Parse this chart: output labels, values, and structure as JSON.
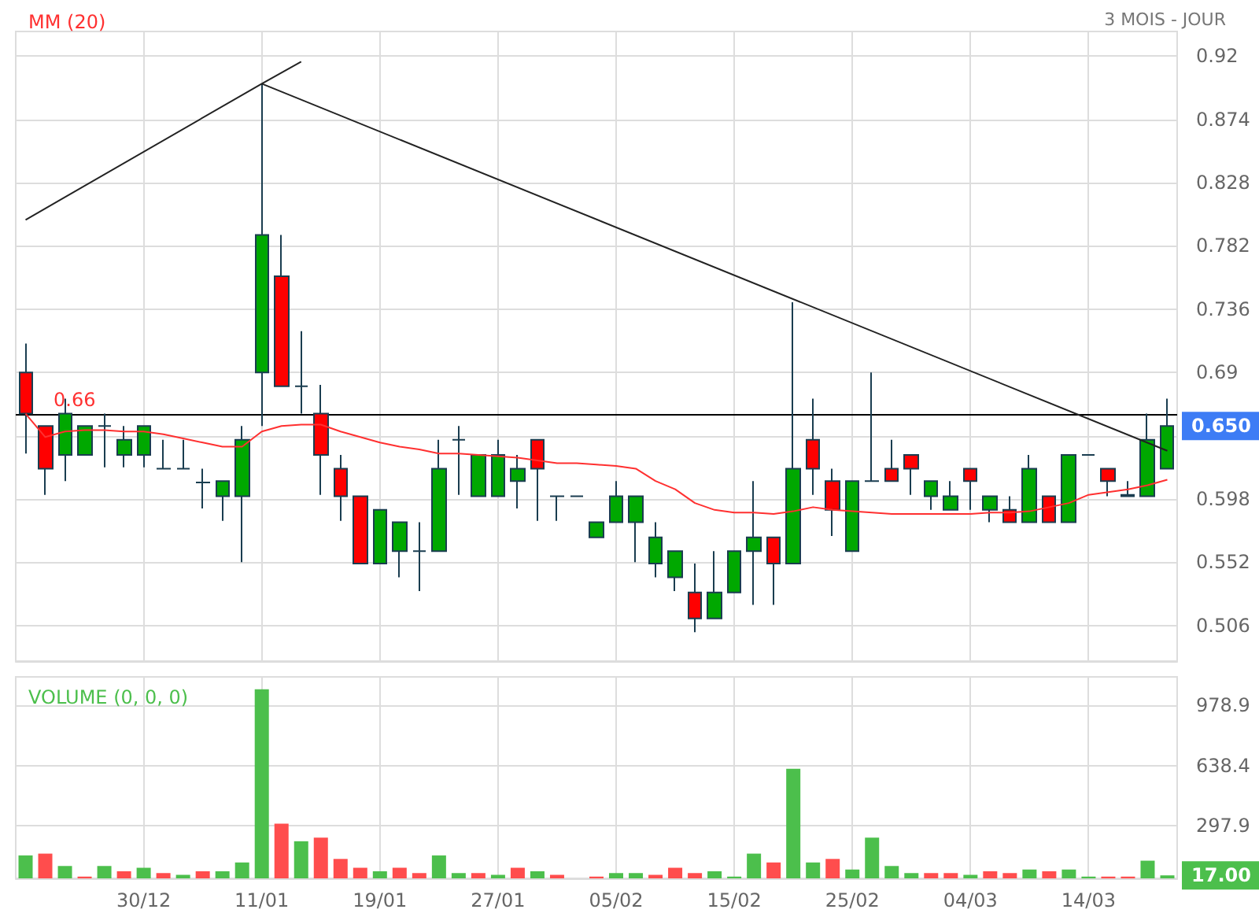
{
  "chart_data": [
    {
      "type": "candlestick",
      "subtitle": "3 MOIS - JOUR",
      "categories": [
        null,
        null,
        null,
        null,
        null,
        null,
        null,
        null,
        null,
        null,
        null,
        null,
        null,
        null,
        null,
        null,
        null,
        null,
        null,
        null,
        null,
        null,
        null,
        null,
        null,
        null,
        null,
        null,
        null,
        null,
        null,
        null,
        null,
        null,
        null,
        null,
        null,
        null,
        null,
        null,
        null,
        null,
        null,
        null,
        null,
        null,
        null,
        null,
        null,
        null,
        null,
        null,
        null,
        null,
        null,
        null,
        null,
        null,
        null
      ],
      "ohlc": [
        [
          0.69,
          0.711,
          0.631,
          0.66
        ],
        [
          0.651,
          0.651,
          0.601,
          0.62
        ],
        [
          0.63,
          0.671,
          0.611,
          0.66
        ],
        [
          0.63,
          0.651,
          0.63,
          0.651
        ],
        [
          0.651,
          0.66,
          0.621,
          0.651
        ],
        [
          0.63,
          0.651,
          0.621,
          0.641
        ],
        [
          0.63,
          0.651,
          0.621,
          0.651
        ],
        [
          0.62,
          0.641,
          0.62,
          0.62
        ],
        [
          0.62,
          0.641,
          0.62,
          0.62
        ],
        [
          0.61,
          0.62,
          0.591,
          0.61
        ],
        [
          0.6,
          0.611,
          0.582,
          0.611
        ],
        [
          0.6,
          0.651,
          0.552,
          0.641
        ],
        [
          0.69,
          0.9,
          0.651,
          0.79
        ],
        [
          0.76,
          0.79,
          0.68,
          0.68
        ],
        [
          0.68,
          0.72,
          0.66,
          0.68
        ],
        [
          0.66,
          0.681,
          0.601,
          0.63
        ],
        [
          0.62,
          0.63,
          0.582,
          0.6
        ],
        [
          0.6,
          0.6,
          0.551,
          0.551
        ],
        [
          0.551,
          0.59,
          0.551,
          0.59
        ],
        [
          0.56,
          0.581,
          0.541,
          0.581
        ],
        [
          0.56,
          0.581,
          0.531,
          0.56
        ],
        [
          0.56,
          0.641,
          0.56,
          0.62
        ],
        [
          0.641,
          0.651,
          0.601,
          0.641
        ],
        [
          0.6,
          0.63,
          0.6,
          0.63
        ],
        [
          0.6,
          0.641,
          0.6,
          0.63
        ],
        [
          0.611,
          0.63,
          0.591,
          0.62
        ],
        [
          0.641,
          0.641,
          0.582,
          0.62
        ],
        [
          0.6,
          0.6,
          0.582,
          0.6
        ],
        [
          0.6,
          0.6,
          0.6,
          0.6
        ],
        [
          0.57,
          0.581,
          0.57,
          0.581
        ],
        [
          0.581,
          0.611,
          0.581,
          0.6
        ],
        [
          0.581,
          0.6,
          0.552,
          0.6
        ],
        [
          0.551,
          0.581,
          0.541,
          0.57
        ],
        [
          0.541,
          0.56,
          0.531,
          0.56
        ],
        [
          0.53,
          0.551,
          0.501,
          0.511
        ],
        [
          0.511,
          0.56,
          0.511,
          0.53
        ],
        [
          0.53,
          0.56,
          0.53,
          0.56
        ],
        [
          0.56,
          0.611,
          0.521,
          0.57
        ],
        [
          0.57,
          0.57,
          0.521,
          0.551
        ],
        [
          0.551,
          0.741,
          0.551,
          0.62
        ],
        [
          0.641,
          0.671,
          0.601,
          0.62
        ],
        [
          0.611,
          0.62,
          0.571,
          0.59
        ],
        [
          0.56,
          0.611,
          0.56,
          0.611
        ],
        [
          0.611,
          0.69,
          0.611,
          0.611
        ],
        [
          0.62,
          0.641,
          0.611,
          0.611
        ],
        [
          0.63,
          0.63,
          0.601,
          0.62
        ],
        [
          0.6,
          0.611,
          0.59,
          0.611
        ],
        [
          0.59,
          0.611,
          0.59,
          0.6
        ],
        [
          0.62,
          0.62,
          0.59,
          0.611
        ],
        [
          0.59,
          0.6,
          0.581,
          0.6
        ],
        [
          0.59,
          0.6,
          0.581,
          0.581
        ],
        [
          0.581,
          0.63,
          0.581,
          0.62
        ],
        [
          0.6,
          0.6,
          0.581,
          0.581
        ],
        [
          0.581,
          0.63,
          0.581,
          0.63
        ],
        [
          0.63,
          0.63,
          0.63,
          0.63
        ],
        [
          0.62,
          0.62,
          0.6,
          0.611
        ],
        [
          0.6,
          0.611,
          0.6,
          0.601
        ],
        [
          0.6,
          0.66,
          0.6,
          0.641
        ],
        [
          0.62,
          0.671,
          0.62,
          0.651
        ]
      ],
      "colors": [
        "#ff0000",
        "#ff0000",
        "#00a800",
        "#00a800",
        "#1a3d50",
        "#00a800",
        "#00a800",
        "#1a3d50",
        "#1a3d50",
        "#1a3d50",
        "#00a800",
        "#00a800",
        "#00a800",
        "#ff0000",
        "#1a3d50",
        "#ff0000",
        "#ff0000",
        "#ff0000",
        "#00a800",
        "#00a800",
        "#1a3d50",
        "#00a800",
        "#1a3d50",
        "#00a800",
        "#00a800",
        "#00a800",
        "#ff0000",
        "#1a3d50",
        "#1a3d50",
        "#00a800",
        "#00a800",
        "#00a800",
        "#00a800",
        "#00a800",
        "#ff0000",
        "#00a800",
        "#00a800",
        "#00a800",
        "#ff0000",
        "#00a800",
        "#ff0000",
        "#ff0000",
        "#00a800",
        "#1a3d50",
        "#ff0000",
        "#ff0000",
        "#00a800",
        "#00a800",
        "#ff0000",
        "#00a800",
        "#ff0000",
        "#00a800",
        "#ff0000",
        "#00a800",
        "#1a3d50",
        "#ff0000",
        "#1a3d50",
        "#00a800",
        "#00a800"
      ],
      "series": [
        {
          "name": "MM (20)",
          "type": "line",
          "color": "#ff3030",
          "values": [
            0.66,
            0.643,
            0.647,
            0.648,
            0.648,
            0.647,
            0.647,
            0.645,
            0.642,
            0.639,
            0.636,
            0.636,
            0.647,
            0.651,
            0.652,
            0.652,
            0.647,
            0.643,
            0.639,
            0.636,
            0.634,
            0.631,
            0.631,
            0.63,
            0.629,
            0.628,
            0.626,
            0.624,
            0.624,
            0.623,
            0.622,
            0.62,
            0.611,
            0.605,
            0.595,
            0.59,
            0.588,
            0.588,
            0.587,
            0.589,
            0.592,
            0.59,
            0.589,
            0.588,
            0.587,
            0.587,
            0.587,
            0.587,
            0.587,
            0.588,
            0.588,
            0.589,
            0.592,
            0.595,
            0.601,
            0.603,
            0.605,
            0.608,
            0.612
          ]
        },
        {
          "type": "line",
          "color": "#222222",
          "values": [
            0.801,
            null,
            null,
            null,
            null,
            null,
            null,
            null,
            null,
            null,
            null,
            null,
            0.9,
            null,
            0.916,
            null,
            null,
            null,
            null,
            null,
            null,
            null,
            null,
            null,
            null,
            null,
            null,
            null,
            null,
            null,
            null,
            null,
            null,
            null,
            null,
            null,
            null,
            null,
            null,
            null,
            null,
            null,
            null,
            null,
            null,
            null,
            null,
            null,
            null,
            null,
            null,
            null,
            null,
            null,
            null,
            null,
            null,
            null,
            null
          ]
        },
        {
          "type": "line",
          "color": "#222222",
          "values": [
            null,
            null,
            null,
            null,
            null,
            null,
            null,
            null,
            null,
            null,
            null,
            null,
            0.9,
            null,
            null,
            null,
            null,
            null,
            null,
            null,
            null,
            null,
            null,
            null,
            null,
            null,
            null,
            null,
            null,
            null,
            null,
            null,
            null,
            null,
            null,
            null,
            null,
            null,
            null,
            null,
            null,
            null,
            null,
            null,
            null,
            null,
            null,
            null,
            null,
            null,
            null,
            null,
            null,
            null,
            null,
            null,
            null,
            null,
            0.633
          ]
        }
      ],
      "ylim": [
        0.48,
        0.938
      ],
      "yticks": [
        0.506,
        0.552,
        0.598,
        {
          "value": 0.644,
          "label": null
        },
        0.69,
        0.736,
        0.782,
        0.828,
        0.874,
        0.92
      ],
      "ref_lines": [
        {
          "axis": "y",
          "value": 0.66,
          "label": "0.66",
          "color": "#000000"
        }
      ],
      "annotations": [
        "0.650"
      ],
      "legend": "top left",
      "grid": true,
      "tick_labels": "y",
      "marker": "none"
    },
    {
      "type": "bar",
      "categories": [
        null,
        null,
        null,
        null,
        null,
        null,
        "30/12",
        null,
        null,
        null,
        null,
        null,
        "11/01",
        null,
        null,
        null,
        null,
        null,
        "19/01",
        null,
        null,
        null,
        null,
        null,
        "27/01",
        null,
        null,
        null,
        null,
        null,
        "05/02",
        null,
        null,
        null,
        null,
        null,
        "15/02",
        null,
        null,
        null,
        null,
        null,
        "25/02",
        null,
        null,
        null,
        null,
        null,
        "04/03",
        null,
        null,
        null,
        null,
        null,
        "14/03",
        null,
        null,
        null,
        null
      ],
      "series": [
        {
          "name": "VOLUME (0, 0, 0)",
          "color": "#4cbf4c",
          "values": [
            130,
            140,
            70,
            10,
            70,
            40,
            60,
            30,
            20,
            40,
            40,
            90,
            1070,
            310,
            210,
            230,
            110,
            60,
            40,
            60,
            30,
            130,
            30,
            30,
            20,
            60,
            40,
            20,
            0,
            10,
            30,
            30,
            20,
            60,
            30,
            40,
            10,
            140,
            90,
            620,
            90,
            110,
            50,
            230,
            70,
            30,
            30,
            30,
            20,
            40,
            30,
            50,
            40,
            50,
            10,
            10,
            10,
            100,
            17
          ],
          "colors": [
            "#4cbf4c",
            "#ff4d4d",
            "#4cbf4c",
            "#ff4d4d",
            "#4cbf4c",
            "#ff4d4d",
            "#4cbf4c",
            "#ff4d4d",
            "#4cbf4c",
            "#ff4d4d",
            "#4cbf4c",
            "#4cbf4c",
            "#4cbf4c",
            "#ff4d4d",
            "#4cbf4c",
            "#ff4d4d",
            "#ff4d4d",
            "#ff4d4d",
            "#4cbf4c",
            "#ff4d4d",
            "#ff4d4d",
            "#4cbf4c",
            "#4cbf4c",
            "#ff4d4d",
            "#4cbf4c",
            "#ff4d4d",
            "#4cbf4c",
            "#ff4d4d",
            "#ff4d4d",
            "#ff4d4d",
            "#4cbf4c",
            "#4cbf4c",
            "#ff4d4d",
            "#ff4d4d",
            "#ff4d4d",
            "#4cbf4c",
            "#4cbf4c",
            "#4cbf4c",
            "#ff4d4d",
            "#4cbf4c",
            "#4cbf4c",
            "#ff4d4d",
            "#4cbf4c",
            "#4cbf4c",
            "#4cbf4c",
            "#4cbf4c",
            "#ff4d4d",
            "#ff4d4d",
            "#4cbf4c",
            "#ff4d4d",
            "#ff4d4d",
            "#4cbf4c",
            "#ff4d4d",
            "#4cbf4c",
            "#4cbf4c",
            "#ff4d4d",
            "#ff4d4d",
            "#4cbf4c",
            "#4cbf4c"
          ]
        }
      ],
      "ylim": [
        0,
        1140
      ],
      "yticks": [
        297.9,
        638.4,
        978.9
      ],
      "annotations": [
        "17.00"
      ],
      "legend": "top left",
      "grid": true
    }
  ]
}
